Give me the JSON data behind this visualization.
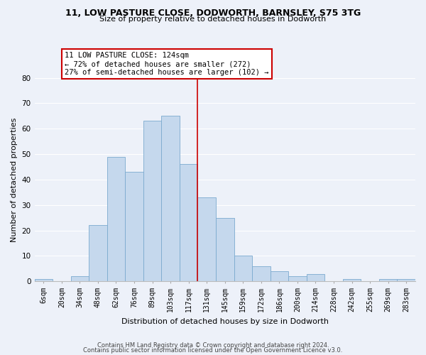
{
  "title1": "11, LOW PASTURE CLOSE, DODWORTH, BARNSLEY, S75 3TG",
  "title2": "Size of property relative to detached houses in Dodworth",
  "xlabel": "Distribution of detached houses by size in Dodworth",
  "ylabel": "Number of detached properties",
  "bar_labels": [
    "6sqm",
    "20sqm",
    "34sqm",
    "48sqm",
    "62sqm",
    "76sqm",
    "89sqm",
    "103sqm",
    "117sqm",
    "131sqm",
    "145sqm",
    "159sqm",
    "172sqm",
    "186sqm",
    "200sqm",
    "214sqm",
    "228sqm",
    "242sqm",
    "255sqm",
    "269sqm",
    "283sqm"
  ],
  "bar_values": [
    1,
    0,
    2,
    22,
    49,
    43,
    63,
    65,
    46,
    33,
    25,
    10,
    6,
    4,
    2,
    3,
    0,
    1,
    0,
    1,
    1
  ],
  "bar_color": "#c5d8ed",
  "bar_edge_color": "#7baacf",
  "vline_index": 8,
  "annotation_line1": "11 LOW PASTURE CLOSE: 124sqm",
  "annotation_line2": "← 72% of detached houses are smaller (272)",
  "annotation_line3": "27% of semi-detached houses are larger (102) →",
  "annotation_box_color": "#ffffff",
  "annotation_box_edge": "#cc0000",
  "vline_color": "#cc0000",
  "ylim": [
    0,
    80
  ],
  "yticks": [
    0,
    10,
    20,
    30,
    40,
    50,
    60,
    70,
    80
  ],
  "footer1": "Contains HM Land Registry data © Crown copyright and database right 2024.",
  "footer2": "Contains public sector information licensed under the Open Government Licence v3.0.",
  "bg_color": "#edf1f9",
  "grid_color": "#ffffff",
  "title1_fontsize": 9,
  "title2_fontsize": 8,
  "ylabel_fontsize": 8,
  "xlabel_fontsize": 8,
  "tick_fontsize": 7,
  "ann_fontsize": 7.5,
  "footer_fontsize": 6
}
